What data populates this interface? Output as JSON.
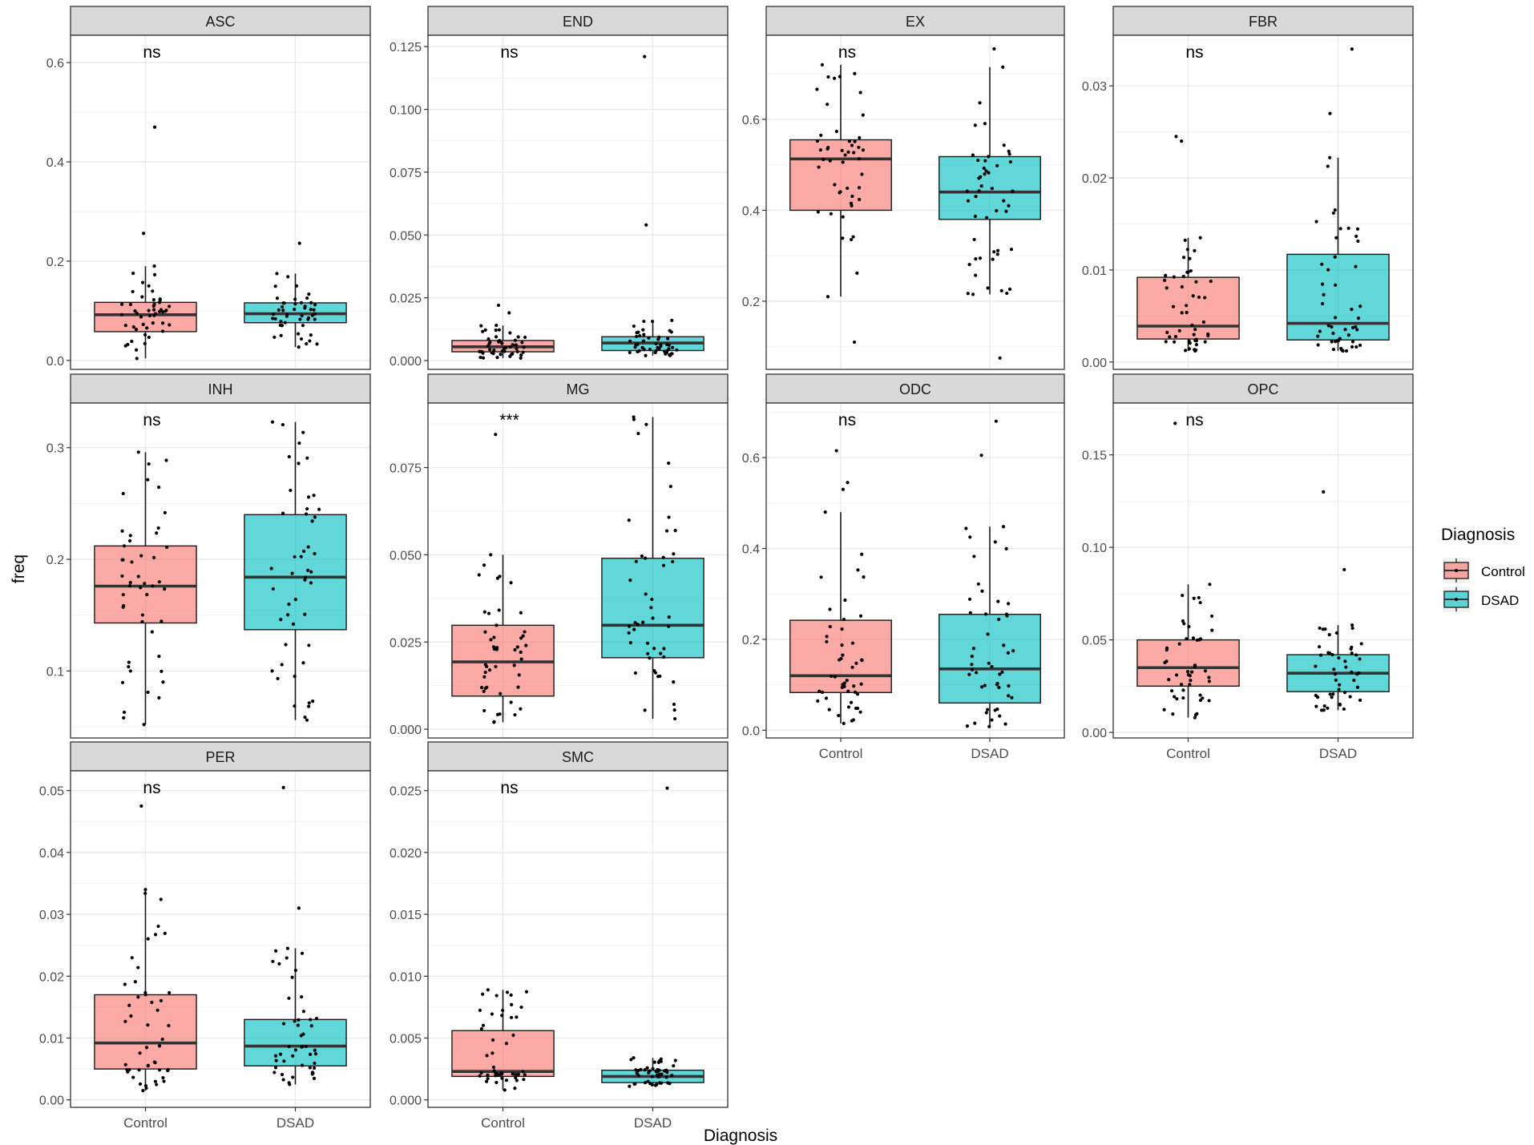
{
  "chart_data": {
    "type": "boxplot-faceted",
    "xlabel": "Diagnosis",
    "ylabel": "freq",
    "legend": {
      "title": "Diagnosis",
      "placement": "right",
      "entries": [
        {
          "label": "Control",
          "color": "#F8766D"
        },
        {
          "label": "DSAD",
          "color": "#00BFC4"
        }
      ]
    },
    "categories": [
      "Control",
      "DSAD"
    ],
    "facets": [
      {
        "name": "ASC",
        "sig": "ns",
        "ylim": [
          -0.018,
          0.655
        ],
        "ticks": [
          0.0,
          0.2,
          0.4,
          0.6
        ],
        "tick_labels": [
          "0.0",
          "0.2",
          "0.4",
          "0.6"
        ],
        "boxes": [
          {
            "group": "Control",
            "q1": 0.058,
            "median": 0.092,
            "q3": 0.117,
            "lower": 0.004,
            "upper": 0.19
          },
          {
            "group": "DSAD",
            "q1": 0.076,
            "median": 0.094,
            "q3": 0.116,
            "lower": 0.027,
            "upper": 0.175
          }
        ],
        "outliers": [
          {
            "group": "Control",
            "value": 0.47
          },
          {
            "group": "Control",
            "value": 0.256
          },
          {
            "group": "DSAD",
            "value": 0.236
          }
        ]
      },
      {
        "name": "END",
        "sig": "ns",
        "ylim": [
          -0.0035,
          0.1295
        ],
        "ticks": [
          0.0,
          0.025,
          0.05,
          0.075,
          0.1,
          0.125
        ],
        "tick_labels": [
          "0.000",
          "0.025",
          "0.050",
          "0.075",
          "0.100",
          "0.125"
        ],
        "boxes": [
          {
            "group": "Control",
            "q1": 0.0035,
            "median": 0.0055,
            "q3": 0.008,
            "lower": 0.001,
            "upper": 0.014
          },
          {
            "group": "DSAD",
            "q1": 0.004,
            "median": 0.007,
            "q3": 0.0095,
            "lower": 0.002,
            "upper": 0.016
          }
        ],
        "outliers": [
          {
            "group": "Control",
            "value": 0.022
          },
          {
            "group": "Control",
            "value": 0.019
          },
          {
            "group": "DSAD",
            "value": 0.121
          },
          {
            "group": "DSAD",
            "value": 0.054
          }
        ]
      },
      {
        "name": "EX",
        "sig": "ns",
        "ylim": [
          0.05,
          0.785
        ],
        "ticks": [
          0.2,
          0.4,
          0.6
        ],
        "tick_labels": [
          "0.2",
          "0.4",
          "0.6"
        ],
        "boxes": [
          {
            "group": "Control",
            "q1": 0.4,
            "median": 0.513,
            "q3": 0.555,
            "lower": 0.21,
            "upper": 0.72
          },
          {
            "group": "DSAD",
            "q1": 0.38,
            "median": 0.44,
            "q3": 0.518,
            "lower": 0.215,
            "upper": 0.715
          }
        ],
        "outliers": [
          {
            "group": "Control",
            "value": 0.11
          },
          {
            "group": "DSAD",
            "value": 0.075
          },
          {
            "group": "DSAD",
            "value": 0.755
          }
        ]
      },
      {
        "name": "FBR",
        "sig": "ns",
        "ylim": [
          -0.0008,
          0.0355
        ],
        "ticks": [
          0.0,
          0.01,
          0.02,
          0.03
        ],
        "tick_labels": [
          "0.00",
          "0.01",
          "0.02",
          "0.03"
        ],
        "boxes": [
          {
            "group": "Control",
            "q1": 0.0025,
            "median": 0.0039,
            "q3": 0.0092,
            "lower": 0.0012,
            "upper": 0.0135
          },
          {
            "group": "DSAD",
            "q1": 0.0024,
            "median": 0.0042,
            "q3": 0.0117,
            "lower": 0.0012,
            "upper": 0.0222
          }
        ],
        "outliers": [
          {
            "group": "Control",
            "value": 0.0245
          },
          {
            "group": "Control",
            "value": 0.024
          },
          {
            "group": "DSAD",
            "value": 0.034
          },
          {
            "group": "DSAD",
            "value": 0.027
          }
        ]
      },
      {
        "name": "INH",
        "sig": "ns",
        "ylim": [
          0.04,
          0.34
        ],
        "ticks": [
          0.1,
          0.2,
          0.3
        ],
        "tick_labels": [
          "0.1",
          "0.2",
          "0.3"
        ],
        "boxes": [
          {
            "group": "Control",
            "q1": 0.143,
            "median": 0.176,
            "q3": 0.212,
            "lower": 0.052,
            "upper": 0.296
          },
          {
            "group": "DSAD",
            "q1": 0.137,
            "median": 0.184,
            "q3": 0.24,
            "lower": 0.056,
            "upper": 0.323
          }
        ],
        "outliers": []
      },
      {
        "name": "MG",
        "sig": "***",
        "ylim": [
          -0.0025,
          0.0935
        ],
        "ticks": [
          0.0,
          0.025,
          0.05,
          0.075
        ],
        "tick_labels": [
          "0.000",
          "0.025",
          "0.050",
          "0.075"
        ],
        "boxes": [
          {
            "group": "Control",
            "q1": 0.0095,
            "median": 0.0193,
            "q3": 0.0298,
            "lower": 0.002,
            "upper": 0.05
          },
          {
            "group": "DSAD",
            "q1": 0.0205,
            "median": 0.0298,
            "q3": 0.049,
            "lower": 0.003,
            "upper": 0.0895
          }
        ],
        "outliers": [
          {
            "group": "Control",
            "value": 0.0845
          }
        ]
      },
      {
        "name": "ODC",
        "sig": "ns",
        "ylim": [
          -0.017,
          0.72
        ],
        "ticks": [
          0.0,
          0.2,
          0.4,
          0.6
        ],
        "tick_labels": [
          "0.0",
          "0.2",
          "0.4",
          "0.6"
        ],
        "boxes": [
          {
            "group": "Control",
            "q1": 0.083,
            "median": 0.12,
            "q3": 0.242,
            "lower": 0.015,
            "upper": 0.48
          },
          {
            "group": "DSAD",
            "q1": 0.06,
            "median": 0.135,
            "q3": 0.255,
            "lower": 0.008,
            "upper": 0.448
          }
        ],
        "outliers": [
          {
            "group": "Control",
            "value": 0.615
          },
          {
            "group": "Control",
            "value": 0.545
          },
          {
            "group": "Control",
            "value": 0.53
          },
          {
            "group": "DSAD",
            "value": 0.68
          },
          {
            "group": "DSAD",
            "value": 0.605
          }
        ]
      },
      {
        "name": "OPC",
        "sig": "ns",
        "ylim": [
          -0.003,
          0.178
        ],
        "ticks": [
          0.0,
          0.05,
          0.1,
          0.15
        ],
        "tick_labels": [
          "0.00",
          "0.05",
          "0.10",
          "0.15"
        ],
        "boxes": [
          {
            "group": "Control",
            "q1": 0.025,
            "median": 0.035,
            "q3": 0.05,
            "lower": 0.008,
            "upper": 0.08
          },
          {
            "group": "DSAD",
            "q1": 0.022,
            "median": 0.032,
            "q3": 0.042,
            "lower": 0.012,
            "upper": 0.058
          }
        ],
        "outliers": [
          {
            "group": "Control",
            "value": 0.167
          },
          {
            "group": "DSAD",
            "value": 0.13
          },
          {
            "group": "DSAD",
            "value": 0.088
          }
        ]
      },
      {
        "name": "PER",
        "sig": "ns",
        "ylim": [
          -0.0012,
          0.0532
        ],
        "ticks": [
          0.0,
          0.01,
          0.02,
          0.03,
          0.04,
          0.05
        ],
        "tick_labels": [
          "0.00",
          "0.01",
          "0.02",
          "0.03",
          "0.04",
          "0.05"
        ],
        "boxes": [
          {
            "group": "Control",
            "q1": 0.005,
            "median": 0.0092,
            "q3": 0.017,
            "lower": 0.0015,
            "upper": 0.034
          },
          {
            "group": "DSAD",
            "q1": 0.0055,
            "median": 0.0087,
            "q3": 0.013,
            "lower": 0.0025,
            "upper": 0.0245
          }
        ],
        "outliers": [
          {
            "group": "Control",
            "value": 0.0475
          },
          {
            "group": "DSAD",
            "value": 0.0505
          },
          {
            "group": "DSAD",
            "value": 0.031
          }
        ]
      },
      {
        "name": "SMC",
        "sig": "ns",
        "ylim": [
          -0.0006,
          0.0266
        ],
        "ticks": [
          0.0,
          0.005,
          0.01,
          0.015,
          0.02,
          0.025
        ],
        "tick_labels": [
          "0.000",
          "0.005",
          "0.010",
          "0.015",
          "0.020",
          "0.025"
        ],
        "boxes": [
          {
            "group": "Control",
            "q1": 0.0019,
            "median": 0.0023,
            "q3": 0.0056,
            "lower": 0.0008,
            "upper": 0.0089
          },
          {
            "group": "DSAD",
            "q1": 0.0014,
            "median": 0.0019,
            "q3": 0.0024,
            "lower": 0.0011,
            "upper": 0.0034
          }
        ],
        "outliers": [
          {
            "group": "DSAD",
            "value": 0.0252
          }
        ]
      }
    ]
  }
}
